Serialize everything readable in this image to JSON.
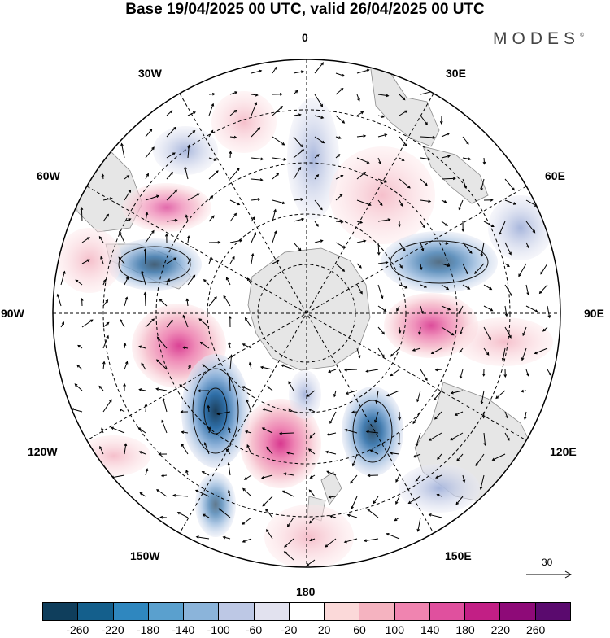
{
  "title": "Base 19/04/2025 00 UTC, valid 26/04/2025 00 UTC",
  "brand": "MODES",
  "brand_mark": "©",
  "longitude_labels": {
    "n": "0",
    "s": "180",
    "e": "90E",
    "w": "90W",
    "ne30": "30E",
    "ne60": "60E",
    "se120": "120E",
    "se150": "150E",
    "nw30": "30W",
    "nw60": "60W",
    "sw120": "120W",
    "sw150": "150W"
  },
  "reference_vector": "30",
  "colorbar": {
    "colors": [
      "#0f3e5c",
      "#145f8c",
      "#2f87bf",
      "#5aa0ce",
      "#8bb4da",
      "#bdc8e5",
      "#e2e2ef",
      "#ffffff",
      "#fbd9d9",
      "#f5b3c0",
      "#f084b0",
      "#e0509e",
      "#c21f85",
      "#8e0a78",
      "#5a0a6e"
    ],
    "ticks": [
      "-260",
      "-220",
      "-180",
      "-140",
      "-100",
      "-60",
      "-20",
      "20",
      "60",
      "100",
      "140",
      "180",
      "220",
      "260"
    ]
  },
  "colors": {
    "negative": "#2f87bf",
    "positive": "#e0509e",
    "land": "#e6e6e6"
  }
}
